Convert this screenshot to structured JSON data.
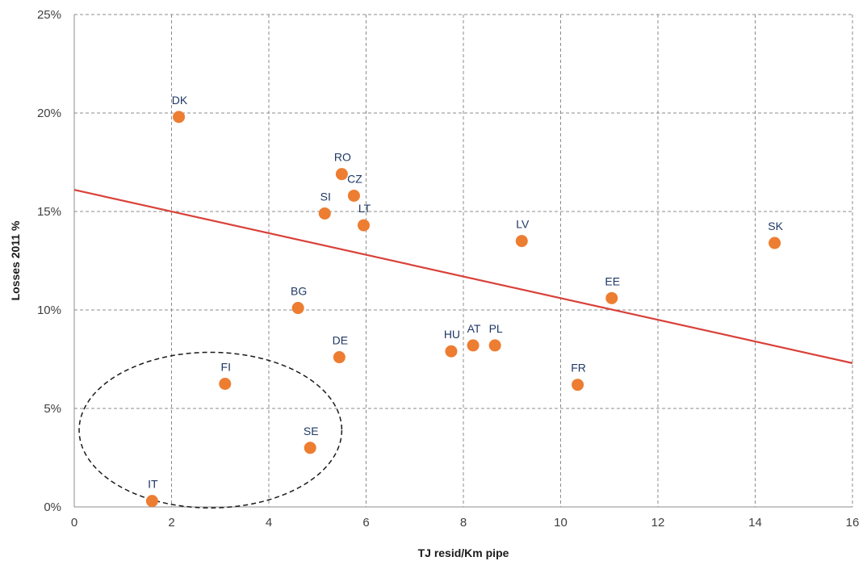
{
  "chart_data": {
    "type": "scatter",
    "title": "",
    "xlabel": "TJ resid/Km pipe",
    "ylabel": "Losses 2011 %",
    "xlim": [
      0,
      16
    ],
    "ylim": [
      0,
      25
    ],
    "x_ticks": [
      "0",
      "2",
      "4",
      "6",
      "8",
      "10",
      "12",
      "14",
      "16"
    ],
    "y_ticks": [
      "0%",
      "5%",
      "10%",
      "15%",
      "20%",
      "25%"
    ],
    "grid": true,
    "marker_color": "#ED7D31",
    "trendline_color": "#D9413A",
    "points": [
      {
        "label": "DK",
        "x": 2.15,
        "y": 19.8
      },
      {
        "label": "RO",
        "x": 5.5,
        "y": 16.9
      },
      {
        "label": "CZ",
        "x": 5.75,
        "y": 15.8
      },
      {
        "label": "SI",
        "x": 5.15,
        "y": 14.9
      },
      {
        "label": "LT",
        "x": 5.95,
        "y": 14.3
      },
      {
        "label": "LV",
        "x": 9.2,
        "y": 13.5
      },
      {
        "label": "SK",
        "x": 14.4,
        "y": 13.4
      },
      {
        "label": "EE",
        "x": 11.05,
        "y": 10.6
      },
      {
        "label": "BG",
        "x": 4.6,
        "y": 10.1
      },
      {
        "label": "HU",
        "x": 7.75,
        "y": 7.9
      },
      {
        "label": "AT",
        "x": 8.2,
        "y": 8.2
      },
      {
        "label": "PL",
        "x": 8.65,
        "y": 8.2
      },
      {
        "label": "DE",
        "x": 5.45,
        "y": 7.6
      },
      {
        "label": "FI",
        "x": 3.1,
        "y": 6.25
      },
      {
        "label": "FR",
        "x": 10.35,
        "y": 6.2
      },
      {
        "label": "SE",
        "x": 4.85,
        "y": 3.0
      },
      {
        "label": "IT",
        "x": 1.6,
        "y": 0.3
      }
    ],
    "trendline": {
      "x": [
        0,
        16
      ],
      "y": [
        16.1,
        7.3
      ]
    },
    "highlight_ellipse": {
      "cx": 2.8,
      "cy": 3.9,
      "rx": 2.7,
      "ry": 3.95
    }
  }
}
